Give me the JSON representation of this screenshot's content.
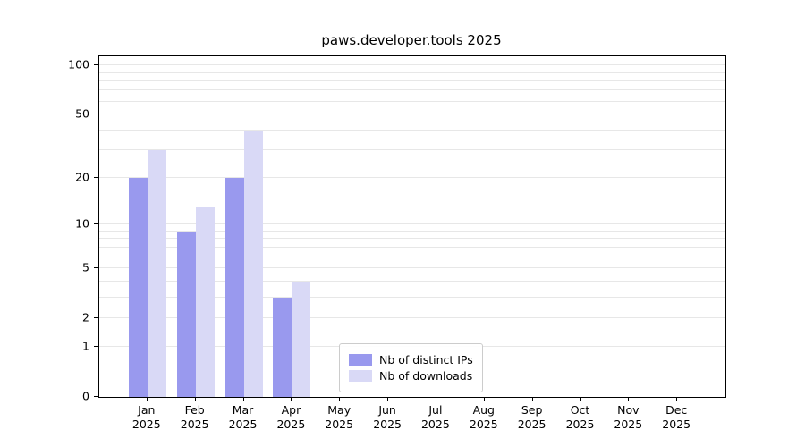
{
  "chart_data": {
    "type": "bar",
    "title": "paws.developer.tools 2025",
    "year_label": "2025",
    "categories": [
      "Jan",
      "Feb",
      "Mar",
      "Apr",
      "May",
      "Jun",
      "Jul",
      "Aug",
      "Sep",
      "Oct",
      "Nov",
      "Dec"
    ],
    "series": [
      {
        "name": "Nb of distinct IPs",
        "key": "distinct-ips",
        "color": "#9999ee",
        "values": [
          20,
          9,
          20,
          3,
          0,
          0,
          0,
          0,
          0,
          0,
          0,
          0
        ]
      },
      {
        "name": "Nb of downloads",
        "key": "downloads",
        "color": "#d9d9f6",
        "values": [
          30,
          13,
          40,
          4,
          0,
          0,
          0,
          0,
          0,
          0,
          0,
          0
        ]
      }
    ],
    "y_scale": "log1p",
    "ylim": [
      0,
      112
    ],
    "yticks": [
      0,
      1,
      2,
      5,
      10,
      20,
      50,
      100
    ],
    "gridlines": [
      1,
      2,
      3,
      4,
      5,
      6,
      7,
      8,
      9,
      10,
      20,
      30,
      40,
      50,
      60,
      70,
      80,
      90,
      100
    ],
    "legend_position": "bottom-center",
    "grid_on": true,
    "grid_color": "#e7e7e7",
    "axis_color": "#000000",
    "background_color": "#ffffff"
  }
}
